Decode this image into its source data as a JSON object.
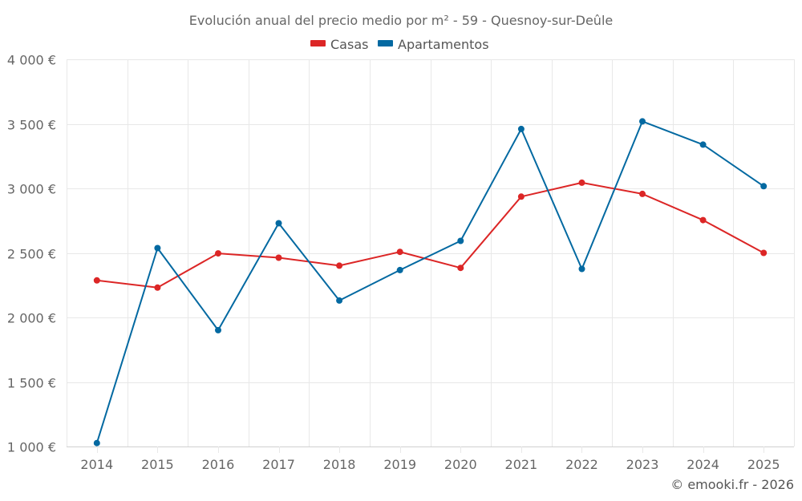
{
  "chart_data": {
    "type": "line",
    "title": "Evolución anual del precio medio por m² - 59 - Quesnoy-sur-Deûle",
    "xlabel": "",
    "ylabel": "",
    "categories": [
      "2014",
      "2015",
      "2016",
      "2017",
      "2018",
      "2019",
      "2020",
      "2021",
      "2022",
      "2023",
      "2024",
      "2025"
    ],
    "ylim": [
      1000,
      4000
    ],
    "yticks": [
      1000,
      1500,
      2000,
      2500,
      3000,
      3500,
      4000
    ],
    "ytick_labels": [
      "1 000 €",
      "1 500 €",
      "2 000 €",
      "2 500 €",
      "3 000 €",
      "3 500 €",
      "4 000 €"
    ],
    "grid": true,
    "legend_position": "top-center",
    "series": [
      {
        "name": "Casas",
        "color": "#dc2626",
        "values": [
          2287,
          2231,
          2496,
          2463,
          2401,
          2508,
          2384,
          2936,
          3044,
          2957,
          2754,
          2500
        ]
      },
      {
        "name": "Apartamentos",
        "color": "#0369a1",
        "values": [
          1027,
          2537,
          1901,
          2730,
          2131,
          2367,
          2593,
          3460,
          2376,
          3519,
          3339,
          3017
        ]
      }
    ],
    "credit": "© emooki.fr - 2026"
  }
}
